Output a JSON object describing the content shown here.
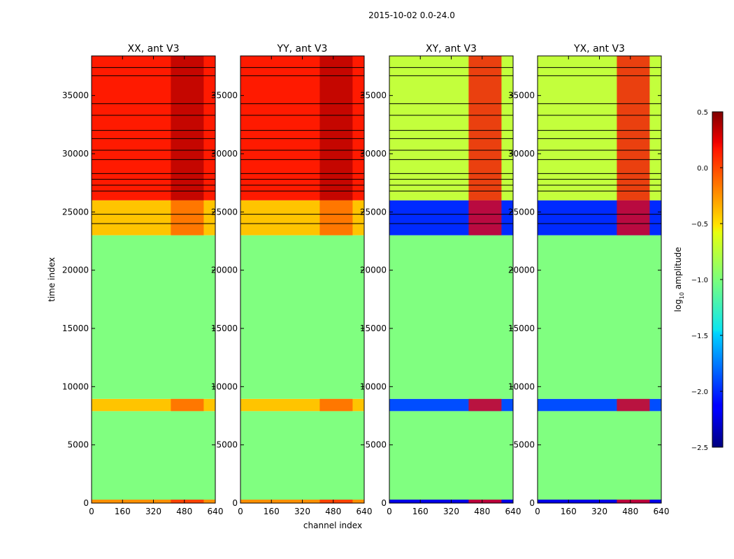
{
  "figure": {
    "suptitle": "2015-10-02 0.0-24.0",
    "xlabel": "channel index",
    "ylabel": "time index",
    "colorbar_label_prefix": "log",
    "colorbar_label_sub": "10",
    "colorbar_label_suffix": " amplitude"
  },
  "chart_data": {
    "type": "heatmap",
    "panels": [
      {
        "title": "XX, ant V3",
        "kind": "auto"
      },
      {
        "title": "YY, ant V3",
        "kind": "auto"
      },
      {
        "title": "XY, ant V3",
        "kind": "cross"
      },
      {
        "title": "YX, ant V3",
        "kind": "cross"
      }
    ],
    "x_axis": {
      "range": [
        0,
        640
      ],
      "ticks": [
        0,
        160,
        320,
        480,
        640
      ],
      "tick_labels": [
        "0",
        "160",
        "320",
        "480",
        "640"
      ]
    },
    "y_axis": {
      "range": [
        0,
        38400
      ],
      "ticks": [
        0,
        5000,
        10000,
        15000,
        20000,
        25000,
        30000,
        35000
      ],
      "tick_labels": [
        "0",
        "5000",
        "10000",
        "15000",
        "20000",
        "25000",
        "30000",
        "35000"
      ]
    },
    "colorbar": {
      "range": [
        -2.5,
        0.5
      ],
      "ticks": [
        0.5,
        0.0,
        -0.5,
        -1.0,
        -1.5,
        -2.0,
        -2.5
      ],
      "tick_labels": [
        "0.5",
        "0.0",
        "−0.5",
        "−1.0",
        "−1.5",
        "−2.0",
        "−2.5"
      ],
      "colormap": "jet"
    },
    "flagged_fill_value": -1.0,
    "blocks": [
      {
        "t0": 0,
        "t1": 300,
        "auto": -0.3,
        "cross": -2.2
      },
      {
        "t0": 300,
        "t1": 7900,
        "auto": -1.0,
        "cross": -1.0
      },
      {
        "t0": 7900,
        "t1": 8950,
        "auto": -0.45,
        "cross": -1.9
      },
      {
        "t0": 8950,
        "t1": 23000,
        "auto": -1.0,
        "cross": -1.0
      },
      {
        "t0": 23000,
        "t1": 26000,
        "auto": -0.45,
        "cross": -2.0
      },
      {
        "t0": 26000,
        "t1": 38400,
        "auto": 0.05,
        "cross": -0.8
      }
    ],
    "high_channel_band": {
      "c0": 410,
      "c1": 580,
      "auto_boost": 0.3,
      "cross_value": 0.15
    },
    "black_rows": [
      24000,
      24800,
      26800,
      27300,
      27800,
      28300,
      29500,
      30300,
      31300,
      32000,
      33300,
      34300,
      36700,
      37400
    ]
  }
}
